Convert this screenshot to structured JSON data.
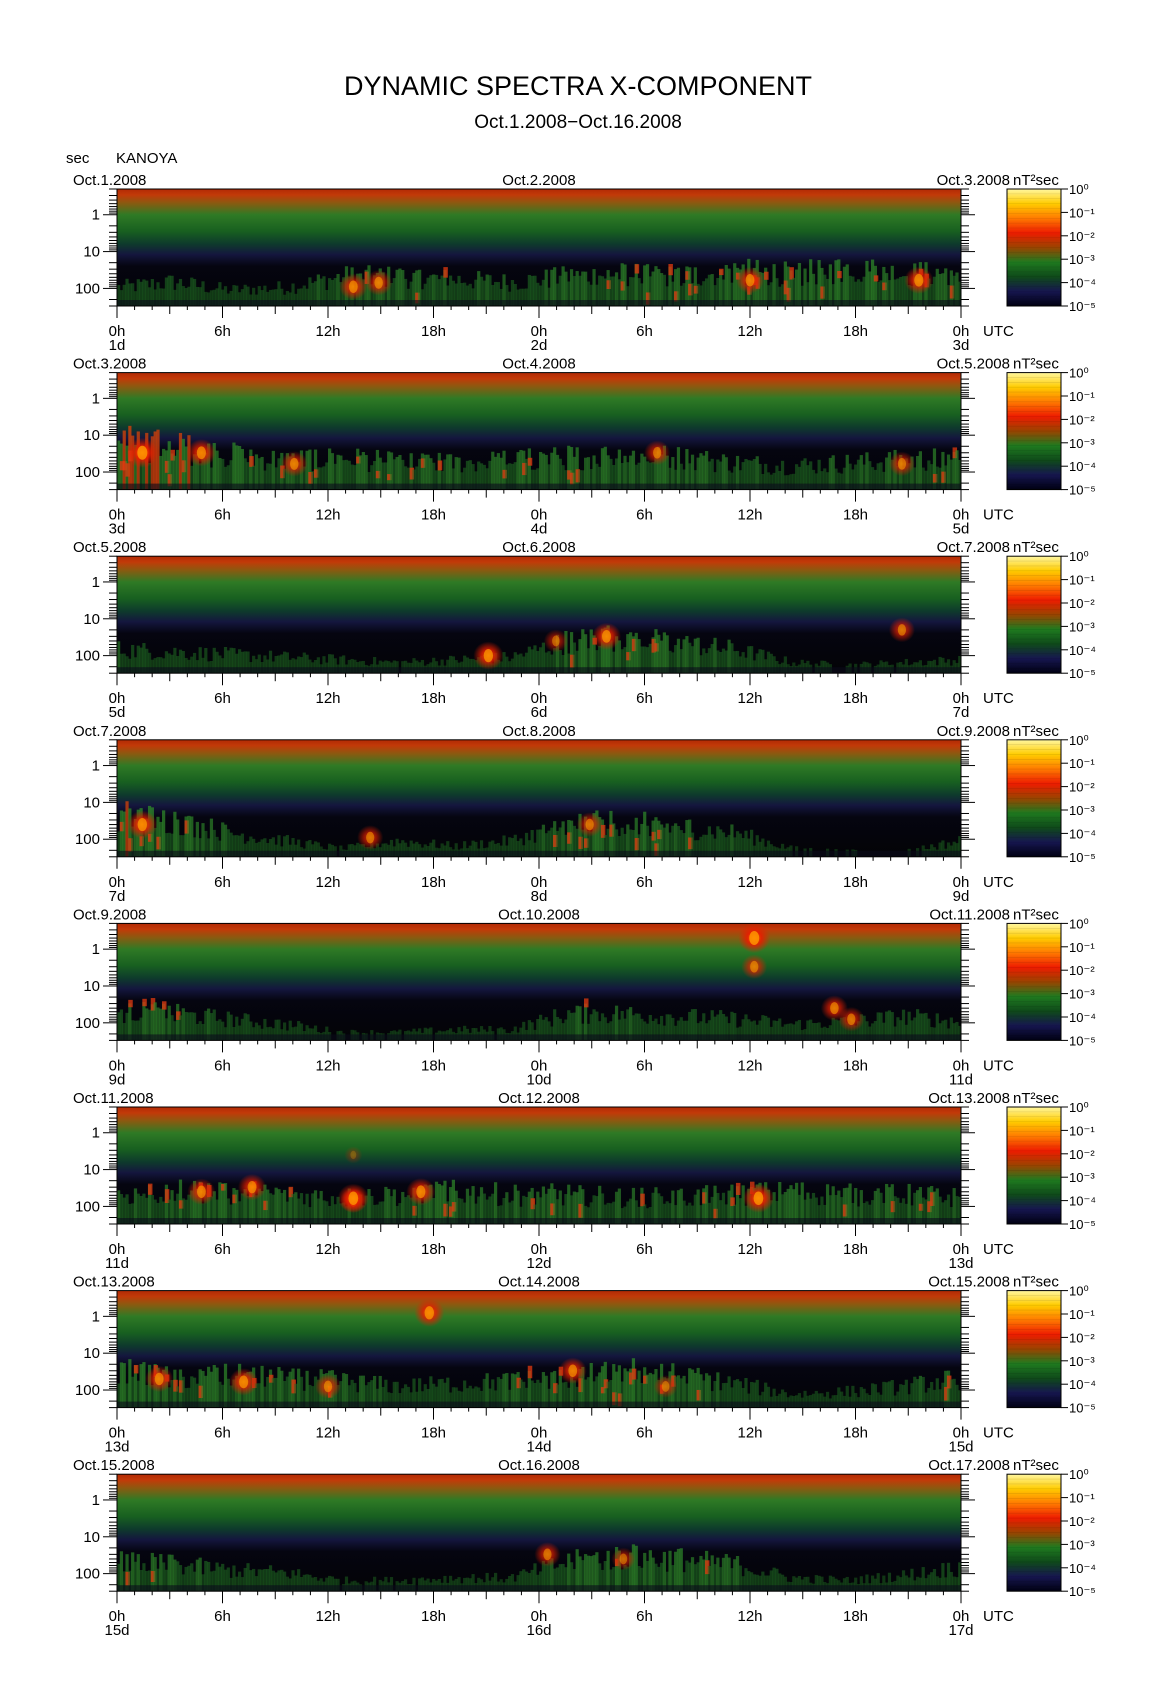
{
  "chart_data": {
    "type": "heatmap",
    "title": "DYNAMIC SPECTRA X-COMPONENT",
    "subtitle": "Oct.1.2008−Oct.16.2008",
    "station": "KANOYA",
    "ylabel": "sec",
    "y_scale": "log",
    "ylim": [
      0.2,
      300
    ],
    "y_ticks": [
      "1",
      "10",
      "100"
    ],
    "x_ticks": [
      "0h",
      "6h",
      "12h",
      "18h",
      "0h",
      "6h",
      "12h",
      "18h",
      "0h"
    ],
    "x_unit": "UTC",
    "colorbar": {
      "label": "nT²sec",
      "ticks": [
        "10⁰",
        "10⁻¹",
        "10⁻²",
        "10⁻³",
        "10⁻⁴",
        "10⁻⁵"
      ],
      "stops": [
        "#fff7a0",
        "#ffcc00",
        "#ff7a00",
        "#ee1c00",
        "#9a4400",
        "#1f7a1f",
        "#0f4a1a",
        "#16164f",
        "#000012"
      ]
    },
    "panels": [
      {
        "dates": [
          "Oct.1.2008",
          "Oct.2.2008",
          "Oct.3.2008"
        ],
        "day_labels": [
          "1d",
          "2d",
          "3d"
        ],
        "activity": [
          0.35,
          0.45,
          0.3,
          0.35,
          0.55,
          0.55,
          0.5,
          0.45,
          0.55,
          0.6,
          0.55,
          0.65,
          0.6,
          0.7,
          0.6,
          0.65
        ],
        "bursts": [
          {
            "t": 0.28,
            "p": 90,
            "i": 0.8
          },
          {
            "t": 0.31,
            "p": 70,
            "i": 0.75
          },
          {
            "t": 0.75,
            "p": 60,
            "i": 0.8
          },
          {
            "t": 0.95,
            "p": 60,
            "i": 0.85
          }
        ]
      },
      {
        "dates": [
          "Oct.3.2008",
          "Oct.4.2008",
          "Oct.5.2008"
        ],
        "day_labels": [
          "3d",
          "4d",
          "5d"
        ],
        "activity": [
          0.9,
          0.8,
          0.65,
          0.55,
          0.6,
          0.5,
          0.5,
          0.55,
          0.6,
          0.65,
          0.6,
          0.5,
          0.45,
          0.5,
          0.55,
          0.6
        ],
        "bursts": [
          {
            "t": 0.03,
            "p": 30,
            "i": 1.0
          },
          {
            "t": 0.1,
            "p": 30,
            "i": 0.85
          },
          {
            "t": 0.21,
            "p": 60,
            "i": 0.75
          },
          {
            "t": 0.64,
            "p": 30,
            "i": 0.7
          },
          {
            "t": 0.93,
            "p": 60,
            "i": 0.7
          }
        ]
      },
      {
        "dates": [
          "Oct.5.2008",
          "Oct.6.2008",
          "Oct.7.2008"
        ],
        "day_labels": [
          "5d",
          "6d",
          "7d"
        ],
        "activity": [
          0.45,
          0.4,
          0.35,
          0.3,
          0.25,
          0.2,
          0.25,
          0.3,
          0.6,
          0.7,
          0.55,
          0.45,
          0.2,
          0.15,
          0.2,
          0.25
        ],
        "bursts": [
          {
            "t": 0.44,
            "p": 100,
            "i": 0.9
          },
          {
            "t": 0.52,
            "p": 40,
            "i": 0.6
          },
          {
            "t": 0.58,
            "p": 30,
            "i": 0.85
          },
          {
            "t": 0.93,
            "p": 20,
            "i": 0.7
          }
        ]
      },
      {
        "dates": [
          "Oct.7.2008",
          "Oct.8.2008",
          "Oct.9.2008"
        ],
        "day_labels": [
          "7d",
          "8d",
          "9d"
        ],
        "activity": [
          0.8,
          0.7,
          0.45,
          0.3,
          0.15,
          0.3,
          0.2,
          0.3,
          0.6,
          0.65,
          0.55,
          0.45,
          0.15,
          0.1,
          0.1,
          0.3
        ],
        "bursts": [
          {
            "t": 0.03,
            "p": 40,
            "i": 0.9
          },
          {
            "t": 0.3,
            "p": 90,
            "i": 0.7
          },
          {
            "t": 0.56,
            "p": 40,
            "i": 0.7
          }
        ]
      },
      {
        "dates": [
          "Oct.9.2008",
          "Oct.10.2008",
          "Oct.11.2008"
        ],
        "day_labels": [
          "9d",
          "10d",
          "11d"
        ],
        "activity": [
          0.55,
          0.5,
          0.4,
          0.3,
          0.15,
          0.15,
          0.2,
          0.2,
          0.5,
          0.5,
          0.45,
          0.4,
          0.3,
          0.35,
          0.45,
          0.35
        ],
        "bursts": [
          {
            "t": 0.755,
            "p": 0.5,
            "i": 1.0
          },
          {
            "t": 0.755,
            "p": 3,
            "i": 0.7
          },
          {
            "t": 0.85,
            "p": 40,
            "i": 0.75
          },
          {
            "t": 0.87,
            "p": 80,
            "i": 0.7
          }
        ]
      },
      {
        "dates": [
          "Oct.11.2008",
          "Oct.12.2008",
          "Oct.13.2008"
        ],
        "day_labels": [
          "11d",
          "12d",
          "13d"
        ],
        "activity": [
          0.55,
          0.6,
          0.6,
          0.55,
          0.5,
          0.55,
          0.6,
          0.55,
          0.55,
          0.5,
          0.5,
          0.55,
          0.6,
          0.55,
          0.55,
          0.5
        ],
        "bursts": [
          {
            "t": 0.1,
            "p": 40,
            "i": 0.8
          },
          {
            "t": 0.16,
            "p": 30,
            "i": 0.8
          },
          {
            "t": 0.28,
            "p": 70,
            "i": 0.7
          },
          {
            "t": 0.28,
            "p": 4,
            "i": 0.3
          },
          {
            "t": 0.28,
            "p": 60,
            "i": 0.95
          },
          {
            "t": 0.36,
            "p": 40,
            "i": 0.85
          },
          {
            "t": 0.76,
            "p": 60,
            "i": 0.95
          }
        ]
      },
      {
        "dates": [
          "Oct.13.2008",
          "Oct.14.2008",
          "Oct.15.2008"
        ],
        "day_labels": [
          "13d",
          "14d",
          "15d"
        ],
        "activity": [
          0.7,
          0.55,
          0.6,
          0.55,
          0.5,
          0.4,
          0.45,
          0.5,
          0.55,
          0.7,
          0.6,
          0.45,
          0.25,
          0.3,
          0.4,
          0.55
        ],
        "bursts": [
          {
            "t": 0.05,
            "p": 50,
            "i": 0.8
          },
          {
            "t": 0.15,
            "p": 60,
            "i": 0.85
          },
          {
            "t": 0.25,
            "p": 80,
            "i": 0.7
          },
          {
            "t": 0.37,
            "p": 0.8,
            "i": 0.9
          },
          {
            "t": 0.54,
            "p": 30,
            "i": 0.8
          },
          {
            "t": 0.65,
            "p": 80,
            "i": 0.6
          }
        ]
      },
      {
        "dates": [
          "Oct.15.2008",
          "Oct.16.2008",
          "Oct.17.2008"
        ],
        "day_labels": [
          "15d",
          "16d",
          "17d"
        ],
        "activity": [
          0.55,
          0.5,
          0.4,
          0.35,
          0.2,
          0.2,
          0.25,
          0.25,
          0.55,
          0.65,
          0.6,
          0.5,
          0.25,
          0.2,
          0.3,
          0.45
        ],
        "bursts": [
          {
            "t": 0.51,
            "p": 30,
            "i": 0.7
          },
          {
            "t": 0.6,
            "p": 40,
            "i": 0.6
          }
        ]
      }
    ]
  }
}
